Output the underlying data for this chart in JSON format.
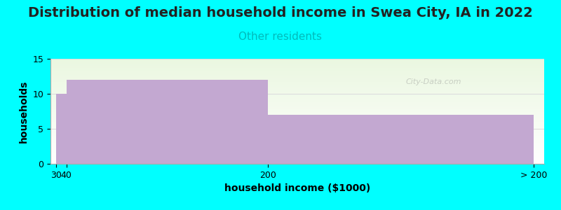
{
  "title": "Distribution of median household income in Swea City, IA in 2022",
  "subtitle": "Other residents",
  "xlabel": "household income ($1000)",
  "ylabel": "households",
  "background_color": "#00FFFF",
  "plot_bg_gradient_top": "#eaf2e0",
  "plot_bg_gradient_bottom": "#ffffff",
  "bar_color": "#C3A8D1",
  "ylim": [
    0,
    15
  ],
  "yticks": [
    0,
    5,
    10,
    15
  ],
  "xtick_labels_pos": [
    0,
    10,
    200,
    450
  ],
  "xtick_labels": [
    "30",
    "40",
    "200",
    "> 200"
  ],
  "title_fontsize": 14,
  "subtitle_fontsize": 11,
  "subtitle_color": "#00BBBB",
  "axis_label_fontsize": 10,
  "tick_fontsize": 9,
  "watermark": "City-Data.com",
  "grid_color": "#dddddd",
  "bars": [
    {
      "x_left": 0,
      "x_right": 10,
      "height": 10
    },
    {
      "x_left": 10,
      "x_right": 200,
      "height": 12
    },
    {
      "x_left": 200,
      "x_right": 450,
      "height": 7
    }
  ],
  "xlim": [
    -5,
    460
  ]
}
